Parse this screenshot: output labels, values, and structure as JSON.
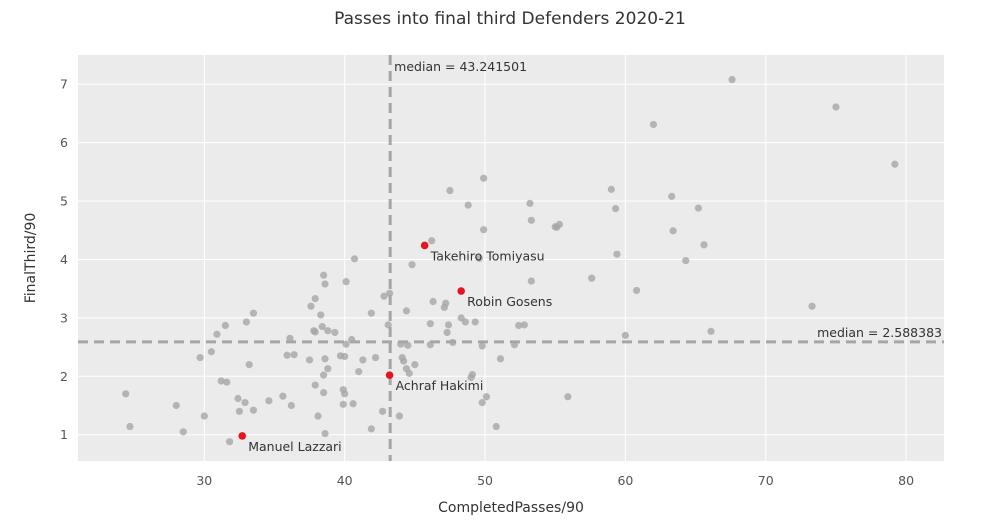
{
  "chart_data": {
    "type": "scatter",
    "title": "Passes into final third Defenders 2020-21",
    "xlabel": "CompletedPasses/90",
    "ylabel": "FinalThird/90",
    "xlim": [
      21,
      82.7
    ],
    "ylim": [
      0.55,
      7.5
    ],
    "xticks": [
      30,
      40,
      50,
      60,
      70,
      80
    ],
    "yticks": [
      1,
      2,
      3,
      4,
      5,
      6,
      7
    ],
    "grid": true,
    "colors": {
      "background": "#ebebeb",
      "grid": "#ffffff",
      "point": "#a6a6a6",
      "highlight": "#e4151f",
      "median_line": "#a6a6a6"
    },
    "medians": {
      "x": 43.241501,
      "y": 2.588383,
      "x_label": "median = 43.241501",
      "y_label": "median = 2.588383"
    },
    "highlighted": [
      {
        "name": "Takehiro Tomiyasu",
        "x": 45.7,
        "y": 4.24
      },
      {
        "name": "Robin Gosens",
        "x": 48.3,
        "y": 3.46
      },
      {
        "name": "Achraf Hakimi",
        "x": 43.2,
        "y": 2.02
      },
      {
        "name": "Manuel Lazzari",
        "x": 32.7,
        "y": 0.98
      }
    ],
    "points": [
      [
        24.4,
        1.7
      ],
      [
        24.7,
        1.14
      ],
      [
        28.0,
        1.5
      ],
      [
        28.5,
        1.05
      ],
      [
        29.7,
        2.32
      ],
      [
        30.0,
        1.32
      ],
      [
        30.5,
        2.42
      ],
      [
        30.9,
        2.72
      ],
      [
        31.2,
        1.92
      ],
      [
        31.5,
        2.87
      ],
      [
        31.6,
        1.9
      ],
      [
        31.8,
        0.88
      ],
      [
        32.4,
        1.62
      ],
      [
        32.5,
        1.4
      ],
      [
        32.9,
        1.55
      ],
      [
        33.0,
        2.93
      ],
      [
        33.2,
        2.2
      ],
      [
        33.5,
        3.08
      ],
      [
        33.5,
        1.42
      ],
      [
        34.6,
        1.58
      ],
      [
        35.6,
        1.66
      ],
      [
        35.9,
        2.36
      ],
      [
        36.1,
        2.65
      ],
      [
        36.2,
        1.5
      ],
      [
        36.4,
        2.37
      ],
      [
        37.5,
        2.28
      ],
      [
        37.6,
        3.2
      ],
      [
        37.9,
        1.85
      ],
      [
        37.9,
        3.33
      ],
      [
        37.8,
        2.78
      ],
      [
        37.9,
        2.76
      ],
      [
        38.1,
        1.32
      ],
      [
        38.3,
        3.05
      ],
      [
        38.4,
        2.85
      ],
      [
        38.5,
        2.02
      ],
      [
        38.5,
        1.72
      ],
      [
        38.6,
        3.58
      ],
      [
        38.5,
        3.73
      ],
      [
        38.6,
        2.3
      ],
      [
        38.6,
        1.02
      ],
      [
        38.8,
        2.78
      ],
      [
        38.8,
        2.13
      ],
      [
        39.3,
        2.75
      ],
      [
        39.7,
        2.35
      ],
      [
        39.9,
        1.77
      ],
      [
        39.9,
        1.52
      ],
      [
        40.0,
        1.7
      ],
      [
        40.1,
        2.55
      ],
      [
        40.0,
        2.34
      ],
      [
        40.1,
        3.62
      ],
      [
        40.5,
        2.63
      ],
      [
        40.6,
        1.53
      ],
      [
        40.7,
        4.01
      ],
      [
        41.0,
        2.08
      ],
      [
        41.3,
        2.28
      ],
      [
        41.9,
        3.08
      ],
      [
        41.9,
        1.1
      ],
      [
        42.2,
        2.32
      ],
      [
        42.7,
        1.4
      ],
      [
        42.8,
        3.37
      ],
      [
        43.1,
        2.88
      ],
      [
        43.2,
        3.42
      ],
      [
        43.9,
        1.32
      ],
      [
        44.0,
        2.55
      ],
      [
        44.1,
        2.32
      ],
      [
        44.2,
        2.26
      ],
      [
        44.4,
        3.12
      ],
      [
        44.4,
        2.13
      ],
      [
        44.5,
        2.53
      ],
      [
        44.6,
        2.05
      ],
      [
        44.8,
        3.91
      ],
      [
        45.0,
        2.2
      ],
      [
        46.1,
        2.9
      ],
      [
        46.2,
        4.32
      ],
      [
        46.3,
        3.28
      ],
      [
        46.1,
        2.54
      ],
      [
        47.1,
        3.18
      ],
      [
        47.2,
        3.25
      ],
      [
        47.3,
        2.75
      ],
      [
        47.4,
        2.88
      ],
      [
        47.5,
        5.18
      ],
      [
        47.7,
        2.58
      ],
      [
        48.3,
        3.0
      ],
      [
        48.6,
        2.93
      ],
      [
        48.8,
        4.93
      ],
      [
        49.0,
        1.98
      ],
      [
        49.1,
        2.03
      ],
      [
        49.3,
        2.93
      ],
      [
        49.6,
        4.02
      ],
      [
        49.8,
        2.52
      ],
      [
        49.8,
        1.55
      ],
      [
        49.9,
        5.39
      ],
      [
        49.9,
        4.51
      ],
      [
        50.1,
        1.65
      ],
      [
        50.8,
        1.14
      ],
      [
        51.1,
        2.3
      ],
      [
        52.1,
        2.54
      ],
      [
        52.4,
        2.87
      ],
      [
        52.8,
        2.88
      ],
      [
        53.2,
        4.96
      ],
      [
        53.3,
        4.67
      ],
      [
        53.3,
        3.63
      ],
      [
        55.0,
        4.56
      ],
      [
        55.1,
        4.55
      ],
      [
        55.3,
        4.6
      ],
      [
        55.9,
        1.65
      ],
      [
        57.6,
        3.68
      ],
      [
        59.0,
        5.2
      ],
      [
        59.3,
        4.87
      ],
      [
        59.4,
        4.09
      ],
      [
        60.0,
        2.7
      ],
      [
        60.8,
        3.47
      ],
      [
        62.0,
        6.31
      ],
      [
        63.3,
        5.08
      ],
      [
        63.4,
        4.49
      ],
      [
        64.3,
        3.98
      ],
      [
        65.2,
        4.88
      ],
      [
        65.6,
        4.25
      ],
      [
        66.1,
        2.77
      ],
      [
        67.6,
        7.08
      ],
      [
        73.3,
        3.2
      ],
      [
        75.0,
        6.61
      ],
      [
        79.2,
        5.63
      ]
    ]
  }
}
